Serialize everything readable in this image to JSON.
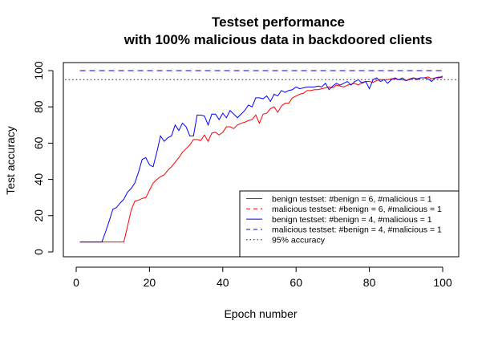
{
  "chart_data": {
    "type": "line",
    "title": [
      "Testset performance",
      "with 100% malicious data in backdoored clients"
    ],
    "xlabel": "Epoch number",
    "ylabel": "Test accuracy",
    "xlim": [
      0,
      100
    ],
    "ylim": [
      0,
      100
    ],
    "xticks": [
      0,
      20,
      40,
      60,
      80,
      100
    ],
    "yticks": [
      0,
      20,
      40,
      60,
      80,
      100
    ],
    "legend_position": "bottom-right",
    "series": [
      {
        "name": "benign testset: #benign = 6, #malicious = 1",
        "color": "#ff0000",
        "dash": "solid",
        "x": [
          1,
          2,
          3,
          4,
          5,
          6,
          7,
          8,
          9,
          10,
          11,
          12,
          13,
          14,
          15,
          16,
          17,
          18,
          19,
          20,
          21,
          22,
          23,
          24,
          25,
          26,
          27,
          28,
          29,
          30,
          31,
          32,
          33,
          34,
          35,
          36,
          37,
          38,
          39,
          40,
          41,
          42,
          43,
          44,
          45,
          46,
          47,
          48,
          49,
          50,
          51,
          52,
          53,
          54,
          55,
          56,
          57,
          58,
          59,
          60,
          61,
          62,
          63,
          64,
          65,
          66,
          67,
          68,
          69,
          70,
          71,
          72,
          73,
          74,
          75,
          76,
          77,
          78,
          79,
          80,
          81,
          82,
          83,
          84,
          85,
          86,
          87,
          88,
          89,
          90,
          91,
          92,
          93,
          94,
          95,
          96,
          97,
          98,
          99,
          100
        ],
        "y": [
          5.5,
          5.5,
          5.5,
          5.5,
          5.5,
          5.5,
          5.5,
          5.5,
          5.5,
          5.5,
          5.5,
          5.5,
          5.5,
          14,
          23,
          28,
          28.5,
          29.5,
          30,
          34,
          38,
          40,
          41.5,
          42.5,
          45,
          47,
          49.5,
          52,
          55,
          57,
          59,
          62,
          62,
          61.5,
          64.5,
          61,
          65.5,
          66,
          64.5,
          66,
          69,
          69,
          68,
          70,
          71,
          71.5,
          72.5,
          73,
          75.5,
          71,
          76,
          76.5,
          79,
          80,
          77,
          80.5,
          82,
          82,
          85,
          86,
          87,
          87.5,
          89,
          89,
          89.5,
          89.5,
          90,
          90.5,
          91,
          90.5,
          92,
          91.5,
          91,
          92,
          92.5,
          93,
          92,
          93.5,
          94,
          94,
          93.5,
          94.5,
          95,
          95,
          95,
          95.5,
          95.5,
          95,
          95,
          94.5,
          95.5,
          96,
          95.5,
          96,
          96,
          96.5,
          95.5,
          96,
          96.5,
          96
        ]
      },
      {
        "name": "malicious testset: #benign = 6, #malicious = 1",
        "color": "#ff0000",
        "dash": "dashed",
        "x": [
          1,
          100
        ],
        "y": [
          100,
          100
        ]
      },
      {
        "name": "benign testset: #benign = 4, #malicious = 1",
        "color": "#0000ff",
        "dash": "solid",
        "x": [
          1,
          2,
          3,
          4,
          5,
          6,
          7,
          8,
          9,
          10,
          11,
          12,
          13,
          14,
          15,
          16,
          17,
          18,
          19,
          20,
          21,
          22,
          23,
          24,
          25,
          26,
          27,
          28,
          29,
          30,
          31,
          32,
          33,
          34,
          35,
          36,
          37,
          38,
          39,
          40,
          41,
          42,
          43,
          44,
          45,
          46,
          47,
          48,
          49,
          50,
          51,
          52,
          53,
          54,
          55,
          56,
          57,
          58,
          59,
          60,
          61,
          62,
          63,
          64,
          65,
          66,
          67,
          68,
          69,
          70,
          71,
          72,
          73,
          74,
          75,
          76,
          77,
          78,
          79,
          80,
          81,
          82,
          83,
          84,
          85,
          86,
          87,
          88,
          89,
          90,
          91,
          92,
          93,
          94,
          95,
          96,
          97,
          98,
          99,
          100
        ],
        "y": [
          5.5,
          5.5,
          5.5,
          5.5,
          5.5,
          5.5,
          5.5,
          11,
          17,
          23.5,
          24.5,
          27,
          29,
          33,
          35,
          38,
          44,
          51,
          52,
          48,
          47,
          55,
          64,
          61,
          63,
          64,
          70,
          67,
          71,
          69,
          64,
          64,
          75.5,
          75.5,
          75,
          70,
          76,
          76,
          73,
          76.5,
          74,
          78,
          76,
          74,
          76,
          78,
          81,
          80,
          85,
          85,
          84.5,
          86,
          83,
          87,
          86,
          89,
          88,
          89,
          89.5,
          91,
          90,
          90.5,
          91,
          91,
          91,
          91.5,
          91,
          93,
          89.5,
          91.5,
          93,
          92,
          93,
          94,
          92,
          94,
          95,
          93,
          94,
          90,
          95,
          96,
          94,
          95,
          93,
          95,
          96,
          95,
          96,
          94.5,
          95,
          96,
          95,
          96,
          96,
          95.5,
          94,
          96,
          96,
          97
        ]
      },
      {
        "name": "malicious testset: #benign = 4, #malicious = 1",
        "color": "#0000ff",
        "dash": "dashed",
        "x": [
          1,
          100
        ],
        "y": [
          100,
          100
        ]
      },
      {
        "name": "95% accuracy",
        "color": "#555555",
        "dash": "dotted",
        "x": [
          -4,
          104
        ],
        "y": [
          95,
          95
        ]
      }
    ]
  }
}
